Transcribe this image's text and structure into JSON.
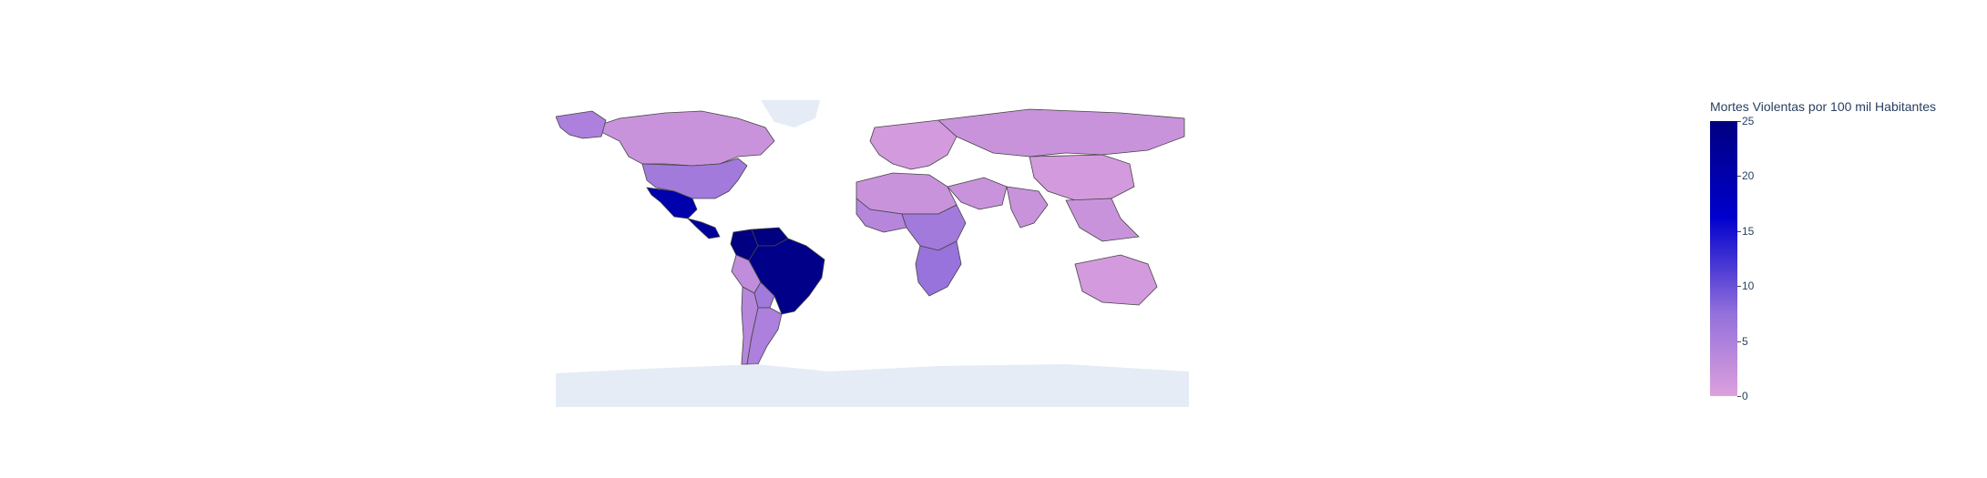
{
  "colorbar": {
    "title": "Mortes Violentas por 100 mil Habitantes",
    "ticks": [
      "0",
      "5",
      "10",
      "15",
      "20",
      "25"
    ],
    "range": [
      0,
      25
    ],
    "colors": [
      "#dda0dd",
      "#9370db",
      "#0000cd",
      "#000080"
    ]
  },
  "map": {
    "land_no_data_color": "#e5ecf6",
    "border_color": "#444444",
    "regions": [
      {
        "name": "Canada",
        "value": 2
      },
      {
        "name": "Alaska",
        "value": 5
      },
      {
        "name": "United States",
        "value": 6
      },
      {
        "name": "Mexico",
        "value": 20
      },
      {
        "name": "Central America",
        "value": 22
      },
      {
        "name": "Colombia",
        "value": 25
      },
      {
        "name": "Venezuela",
        "value": 25
      },
      {
        "name": "Brazil",
        "value": 24
      },
      {
        "name": "Peru",
        "value": 3
      },
      {
        "name": "Bolivia",
        "value": 6
      },
      {
        "name": "Chile",
        "value": 4
      },
      {
        "name": "Argentina",
        "value": 5
      },
      {
        "name": "Europe",
        "value": 1
      },
      {
        "name": "Russia",
        "value": 2
      },
      {
        "name": "North Africa",
        "value": 2
      },
      {
        "name": "West Africa",
        "value": 4
      },
      {
        "name": "Central Africa",
        "value": 6
      },
      {
        "name": "Southern Africa",
        "value": 7
      },
      {
        "name": "Middle East",
        "value": 2
      },
      {
        "name": "India",
        "value": 2
      },
      {
        "name": "China",
        "value": 1
      },
      {
        "name": "Southeast Asia",
        "value": 2
      },
      {
        "name": "Australia",
        "value": 1
      },
      {
        "name": "Greenland",
        "value": null
      },
      {
        "name": "Antarctica",
        "value": null
      }
    ]
  }
}
